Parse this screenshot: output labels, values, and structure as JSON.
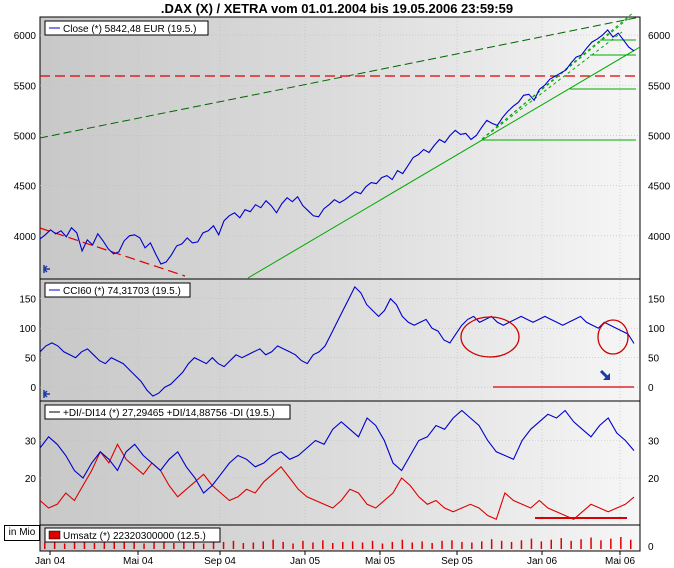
{
  "title": ".DAX (X) / XETRA vom 01.01.2004  bis 19.05.2006 23:59:59",
  "volume_unit_label": "in Mio",
  "colors": {
    "price": "#0000cc",
    "di_minus": "#dd0000",
    "volume": "#dd0000",
    "trend_green": "#00aa00",
    "trend_dark_green": "#006600",
    "support_red": "#dd0000",
    "circle_red": "#cc0000",
    "arrow_blue": "#1a3aa8"
  },
  "icons": {
    "left_arrow": "arrow-left-icon",
    "down_right_arrow": "arrow-down-right-icon"
  },
  "panels": {
    "price": {
      "legend": "Close (*) 5842,48 EUR (19.5.)",
      "y_ticks": [
        "6000",
        "5500",
        "5000",
        "4500",
        "4000"
      ]
    },
    "cci": {
      "legend": "CCI60 (*) 74,31703 (19.5.)",
      "y_ticks": [
        "150",
        "100",
        "50",
        "0"
      ]
    },
    "dmi": {
      "legend": "+DI/-DI14 (*) 27,29465 +DI/14,88756 -DI (19.5.)",
      "y_ticks": [
        "30",
        "20"
      ]
    },
    "volume": {
      "legend": "Umsatz (*) 22320300000 (12.5.)",
      "y_ticks": [
        "0"
      ]
    }
  },
  "x_ticks": [
    "Jan 04",
    "Mai 04",
    "Sep 04",
    "Jan 05",
    "Mai 05",
    "Sep 05",
    "Jan 06",
    "Mai 06"
  ],
  "chart_data": [
    {
      "type": "line",
      "series": [
        {
          "name": "Close",
          "values": [
            3970,
            4010,
            4060,
            4020,
            4050,
            3990,
            4080,
            4030,
            3850,
            3960,
            3910,
            4020,
            3950,
            3870,
            3820,
            3840,
            3950,
            4000,
            4010,
            3980,
            3880,
            3930,
            3820,
            3720,
            3740,
            3810,
            3900,
            3920,
            3980,
            3930,
            3940,
            4030,
            4050,
            4100,
            4010,
            4150,
            4200,
            4230,
            4180,
            4260,
            4240,
            4310,
            4280,
            4350,
            4300,
            4230,
            4320,
            4380,
            4340,
            4390,
            4300,
            4250,
            4200,
            4190,
            4270,
            4310,
            4360,
            4330,
            4360,
            4400,
            4440,
            4420,
            4490,
            4530,
            4520,
            4580,
            4600,
            4560,
            4650,
            4620,
            4700,
            4780,
            4810,
            4860,
            4830,
            4900,
            4960,
            4930,
            5000,
            5050,
            5010,
            5020,
            4960,
            5000,
            5080,
            5150,
            5120,
            5100,
            5180,
            5240,
            5290,
            5330,
            5400,
            5410,
            5350,
            5460,
            5500,
            5560,
            5590,
            5620,
            5650,
            5720,
            5780,
            5800,
            5870,
            5930,
            5960,
            6000,
            6050,
            5980,
            6020,
            5950,
            5880,
            5842
          ]
        }
      ],
      "ylim": [
        3600,
        6150
      ]
    },
    {
      "type": "line",
      "series": [
        {
          "name": "CCI60",
          "values": [
            60,
            70,
            75,
            70,
            60,
            55,
            50,
            60,
            65,
            55,
            45,
            40,
            50,
            45,
            40,
            30,
            20,
            10,
            -5,
            -15,
            -10,
            0,
            5,
            15,
            25,
            40,
            50,
            45,
            40,
            50,
            40,
            35,
            45,
            55,
            50,
            55,
            60,
            65,
            55,
            60,
            70,
            65,
            60,
            55,
            45,
            40,
            55,
            60,
            70,
            90,
            110,
            130,
            150,
            170,
            160,
            140,
            130,
            120,
            130,
            150,
            140,
            120,
            110,
            105,
            110,
            115,
            100,
            95,
            80,
            75,
            90,
            105,
            115,
            120,
            110,
            115,
            120,
            110,
            105,
            110,
            115,
            120,
            115,
            110,
            115,
            120,
            115,
            110,
            105,
            110,
            115,
            120,
            110,
            105,
            100,
            110,
            105,
            100,
            95,
            90,
            74
          ]
        }
      ],
      "ylim": [
        -20,
        180
      ]
    },
    {
      "type": "line",
      "series": [
        {
          "name": "+DI",
          "values": [
            28,
            31,
            29,
            26,
            22,
            20,
            24,
            27,
            25,
            22,
            27,
            29,
            26,
            24,
            22,
            25,
            27,
            23,
            20,
            16,
            18,
            21,
            24,
            26,
            25,
            23,
            24,
            26,
            27,
            25,
            26,
            28,
            30,
            29,
            33,
            35,
            33,
            31,
            36,
            34,
            30,
            24,
            22,
            26,
            30,
            31,
            34,
            33,
            36,
            38,
            36,
            34,
            30,
            27,
            26,
            25,
            30,
            33,
            35,
            37,
            36,
            38,
            35,
            33,
            31,
            34,
            36,
            32,
            30,
            27.3
          ]
        },
        {
          "name": "-DI",
          "values": [
            14,
            12,
            13,
            16,
            14,
            18,
            22,
            27,
            24,
            29,
            25,
            23,
            21,
            24,
            22,
            18,
            15,
            17,
            19,
            21,
            18,
            16,
            14,
            15,
            17,
            16,
            19,
            21,
            23,
            20,
            17,
            15,
            14,
            13,
            12,
            14,
            17,
            16,
            13,
            12,
            14,
            16,
            20,
            18,
            15,
            13,
            14,
            12,
            11,
            12,
            13,
            12,
            10,
            9,
            16,
            14,
            13,
            12,
            14,
            12,
            11,
            10,
            9,
            11,
            13,
            12,
            11,
            12,
            13,
            14.9
          ]
        }
      ],
      "ylim": [
        8,
        40
      ]
    },
    {
      "type": "bar",
      "series": [
        {
          "name": "Umsatz",
          "values": [
            1.2,
            1.5,
            1.0,
            1.8,
            1.3,
            1.1,
            1.6,
            1.4,
            1.2,
            1.7,
            1.0,
            1.3,
            1.5,
            1.1,
            1.4,
            1.2,
            1.0,
            1.6,
            1.3,
            1.5,
            1.1,
            1.2,
            1.4,
            1.7,
            1.3,
            1.0,
            1.5,
            1.2,
            1.6,
            1.1,
            1.3,
            1.4,
            1.2,
            1.5,
            1.0,
            1.3,
            1.7,
            1.2,
            1.4,
            1.1,
            1.5,
            1.6,
            1.3,
            1.2,
            1.4,
            1.8,
            1.5,
            1.3,
            1.6,
            1.9,
            1.4,
            1.7,
            2.0,
            1.5,
            1.8,
            2.1,
            1.6,
            1.9,
            2.2,
            1.7
          ]
        }
      ]
    }
  ]
}
